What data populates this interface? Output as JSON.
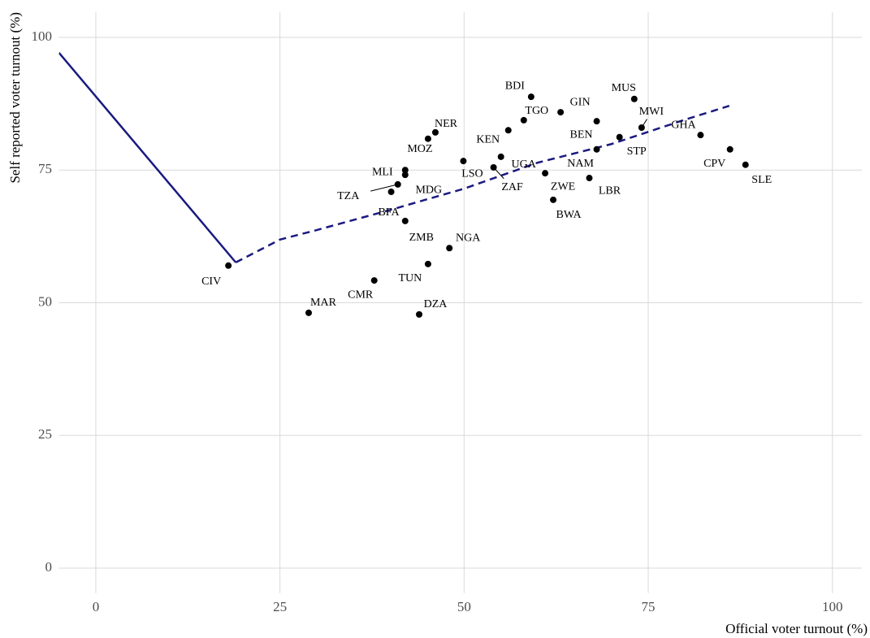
{
  "chart_data": {
    "type": "scatter",
    "x_label": "Official voter turnout (%)",
    "y_label": "Self reported voter turnout (%)",
    "xlim": [
      -5,
      104
    ],
    "ylim": [
      -4.7,
      104.7
    ],
    "xticks": [
      0,
      25,
      50,
      75,
      100
    ],
    "yticks": [
      0,
      25,
      50,
      75,
      100
    ],
    "grid": true,
    "color": "#000000",
    "labels": [
      "CIV",
      "MAR",
      "CMR",
      "TUN",
      "DZA",
      "NGA",
      "ZMB",
      "BFA",
      "TZA",
      "MLI",
      "MDG",
      "MOZ",
      "NER",
      "LSO",
      "KEN",
      "UGA",
      "ZAF",
      "TGO",
      "BDI",
      "GIN",
      "BEN",
      "NAM",
      "ZWE",
      "BWA",
      "LBR",
      "STP",
      "MUS",
      "MWI",
      "GHA",
      "CPV",
      "SLE"
    ],
    "x": [
      18.0,
      28.9,
      37.8,
      45.1,
      43.9,
      48.0,
      42.0,
      40.1,
      41.0,
      42.0,
      42.0,
      45.1,
      46.1,
      49.9,
      56.0,
      55.0,
      54.0,
      58.1,
      59.1,
      63.1,
      68.0,
      68.0,
      61.0,
      62.1,
      67.0,
      71.1,
      73.1,
      74.1,
      82.1,
      86.1,
      88.2
    ],
    "values": [
      57.0,
      48.1,
      54.2,
      57.3,
      47.8,
      60.3,
      65.4,
      70.9,
      72.3,
      75.0,
      74.1,
      80.9,
      82.1,
      76.7,
      82.5,
      77.5,
      75.5,
      84.4,
      88.8,
      85.9,
      84.2,
      78.9,
      74.4,
      69.4,
      73.5,
      81.2,
      88.4,
      83.0,
      81.6,
      78.9,
      76.0
    ],
    "fit_lines": [
      {
        "color": "#1a1a80",
        "dashed": false,
        "x": [
          -5,
          19
        ],
        "values": [
          97.1,
          57.6
        ]
      },
      {
        "color": "#1a1a80",
        "dashed": true,
        "x": [
          19,
          25,
          30,
          40,
          50,
          60,
          70,
          80,
          86
        ],
        "values": [
          57.6,
          61.9,
          63.7,
          67.5,
          71.5,
          76.4,
          79.9,
          84.5,
          87.1
        ]
      }
    ]
  }
}
